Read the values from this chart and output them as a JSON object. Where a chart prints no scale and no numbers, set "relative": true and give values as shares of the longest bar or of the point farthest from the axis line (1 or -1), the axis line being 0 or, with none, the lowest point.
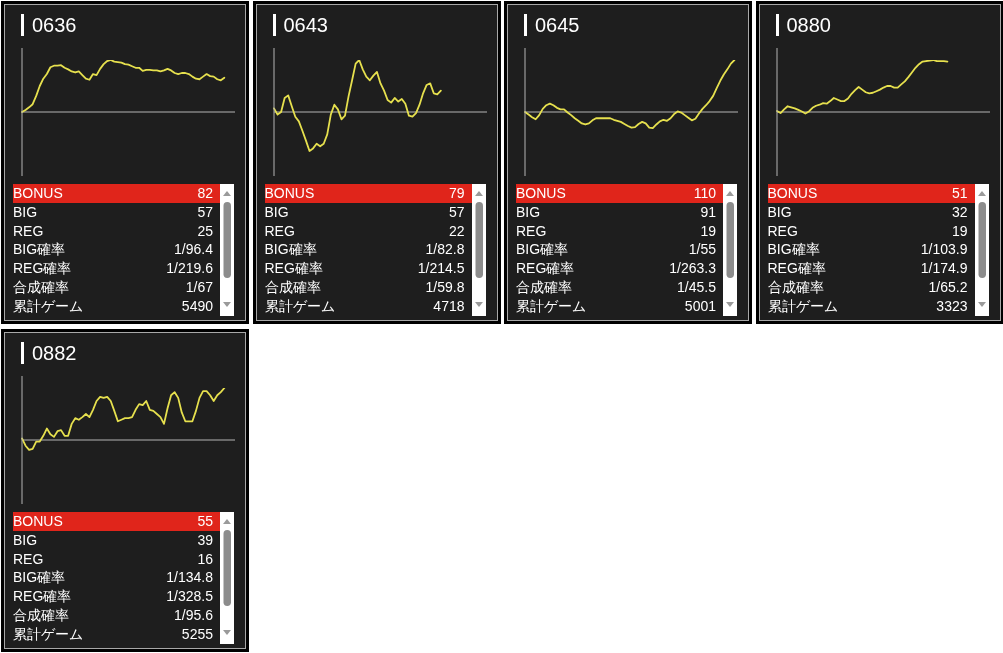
{
  "chart_data": [
    {
      "type": "line",
      "title": "0636",
      "tick_labels": false,
      "relative": true,
      "color": "#e6e04e",
      "categories": [
        null,
        null,
        null,
        null,
        null,
        null,
        null,
        null,
        null,
        null,
        null,
        null,
        null,
        null,
        null,
        null,
        null,
        null,
        null,
        null,
        null,
        null,
        null,
        null,
        null,
        null,
        null,
        null,
        null,
        null,
        null,
        null,
        null,
        null,
        null,
        null,
        null,
        null,
        null,
        null,
        null,
        null,
        null,
        null,
        null,
        null,
        null,
        null,
        null,
        null,
        null,
        null,
        null,
        null,
        null,
        null,
        null,
        null,
        null,
        null,
        null
      ],
      "values": [
        0,
        0.04,
        0.09,
        0.15,
        0.31,
        0.5,
        0.64,
        0.73,
        0.86,
        0.89,
        0.89,
        0.9,
        0.85,
        0.82,
        0.78,
        0.76,
        0.78,
        0.71,
        0.64,
        0.62,
        0.73,
        0.71,
        0.83,
        0.92,
        0.98,
        1,
        0.97,
        0.96,
        0.95,
        0.92,
        0.91,
        0.88,
        0.85,
        0.85,
        0.79,
        0.81,
        0.81,
        0.8,
        0.8,
        0.78,
        0.8,
        0.83,
        0.8,
        0.75,
        0.73,
        0.75,
        0.75,
        0.73,
        0.68,
        0.64,
        0.63,
        0.68,
        0.73,
        0.69,
        0.68,
        0.63,
        0.61,
        0.66,
        null,
        null,
        null
      ],
      "annotations": [
        "BONUS",
        "82",
        "BIG",
        "57",
        "REG",
        "25",
        "BIG確率",
        "1/96.4",
        "REG確率",
        "1/219.6",
        "合成確率",
        "1/67",
        "累計ゲーム",
        "5490"
      ]
    },
    {
      "type": "line",
      "title": "0643",
      "tick_labels": false,
      "relative": true,
      "color": "#e6e04e",
      "categories": [
        null,
        null,
        null,
        null,
        null,
        null,
        null,
        null,
        null,
        null,
        null,
        null,
        null,
        null,
        null,
        null,
        null,
        null,
        null,
        null,
        null,
        null,
        null,
        null,
        null,
        null,
        null,
        null,
        null,
        null,
        null,
        null,
        null,
        null,
        null,
        null,
        null,
        null,
        null,
        null,
        null,
        null,
        null,
        null,
        null,
        null,
        null,
        null,
        null,
        null,
        null,
        null,
        null,
        null,
        null,
        null,
        null,
        null,
        null,
        null,
        null
      ],
      "values": [
        0.07,
        -0.05,
        0,
        0.27,
        0.32,
        0.11,
        -0.09,
        -0.18,
        -0.36,
        -0.55,
        -0.75,
        -0.7,
        -0.61,
        -0.66,
        -0.61,
        -0.43,
        -0.05,
        0.14,
        0.05,
        -0.14,
        -0.07,
        0.3,
        0.61,
        0.93,
        1,
        0.82,
        0.68,
        0.61,
        0.7,
        0.77,
        0.55,
        0.41,
        0.23,
        0.18,
        0.27,
        0.2,
        0.25,
        0.16,
        -0.07,
        -0.09,
        -0.02,
        0.14,
        0.36,
        0.52,
        0.55,
        0.36,
        0.34,
        0.41,
        null,
        null,
        null,
        null,
        null,
        null,
        null,
        null,
        null,
        null,
        null,
        null,
        null
      ],
      "annotations": [
        "BONUS",
        "79",
        "BIG",
        "57",
        "REG",
        "22",
        "BIG確率",
        "1/82.8",
        "REG確率",
        "1/214.5",
        "合成確率",
        "1/59.8",
        "累計ゲーム",
        "4718"
      ]
    },
    {
      "type": "line",
      "title": "0645",
      "tick_labels": false,
      "relative": true,
      "color": "#e6e04e",
      "categories": [
        null,
        null,
        null,
        null,
        null,
        null,
        null,
        null,
        null,
        null,
        null,
        null,
        null,
        null,
        null,
        null,
        null,
        null,
        null,
        null,
        null,
        null,
        null,
        null,
        null,
        null,
        null,
        null,
        null,
        null,
        null,
        null,
        null,
        null,
        null,
        null,
        null,
        null,
        null,
        null,
        null,
        null,
        null,
        null,
        null,
        null,
        null,
        null,
        null,
        null,
        null,
        null,
        null,
        null,
        null,
        null,
        null,
        null,
        null,
        null,
        null
      ],
      "values": [
        0,
        -0.05,
        -0.1,
        -0.14,
        -0.06,
        0.06,
        0.13,
        0.16,
        0.13,
        0.08,
        0.05,
        0.05,
        -0.01,
        -0.06,
        -0.12,
        -0.17,
        -0.22,
        -0.24,
        -0.22,
        -0.16,
        -0.12,
        -0.12,
        -0.12,
        -0.12,
        -0.12,
        -0.15,
        -0.17,
        -0.19,
        -0.23,
        -0.27,
        -0.3,
        -0.29,
        -0.23,
        -0.19,
        -0.22,
        -0.3,
        -0.31,
        -0.24,
        -0.18,
        -0.15,
        -0.17,
        -0.12,
        -0.04,
        0.01,
        -0.01,
        -0.06,
        -0.11,
        -0.16,
        -0.13,
        -0.03,
        0.06,
        0.13,
        0.21,
        0.31,
        0.46,
        0.6,
        0.72,
        0.82,
        0.93,
        1,
        null
      ],
      "annotations": [
        "BONUS",
        "110",
        "BIG",
        "91",
        "REG",
        "19",
        "BIG確率",
        "1/55",
        "REG確率",
        "1/263.3",
        "合成確率",
        "1/45.5",
        "累計ゲーム",
        "5001"
      ]
    },
    {
      "type": "line",
      "title": "0880",
      "tick_labels": false,
      "relative": true,
      "color": "#e6e04e",
      "categories": [
        null,
        null,
        null,
        null,
        null,
        null,
        null,
        null,
        null,
        null,
        null,
        null,
        null,
        null,
        null,
        null,
        null,
        null,
        null,
        null,
        null,
        null,
        null,
        null,
        null,
        null,
        null,
        null,
        null,
        null,
        null,
        null,
        null,
        null,
        null,
        null,
        null,
        null,
        null,
        null,
        null,
        null,
        null,
        null,
        null,
        null,
        null,
        null,
        null,
        null,
        null,
        null,
        null,
        null,
        null,
        null,
        null,
        null,
        null,
        null,
        null
      ],
      "values": [
        0.02,
        -0.02,
        0.05,
        0.11,
        0.09,
        0.07,
        0.04,
        0.01,
        -0.03,
        0.01,
        0.08,
        0.12,
        0.14,
        0.17,
        0.16,
        0.21,
        0.27,
        0.24,
        0.21,
        0.21,
        0.26,
        0.35,
        0.42,
        0.48,
        0.43,
        0.38,
        0.36,
        0.37,
        0.4,
        0.43,
        0.47,
        0.5,
        0.5,
        0.47,
        0.47,
        0.53,
        0.59,
        0.67,
        0.76,
        0.85,
        0.92,
        0.97,
        0.98,
        0.99,
        1,
        0.98,
        0.98,
        0.98,
        0.97,
        null,
        null,
        null,
        null,
        null,
        null,
        null,
        null,
        null,
        null,
        null,
        null
      ],
      "annotations": [
        "BONUS",
        "51",
        "BIG",
        "32",
        "REG",
        "19",
        "BIG確率",
        "1/103.9",
        "REG確率",
        "1/174.9",
        "合成確率",
        "1/65.2",
        "累計ゲーム",
        "3323"
      ]
    },
    {
      "type": "line",
      "title": "0882",
      "tick_labels": false,
      "relative": true,
      "color": "#e6e04e",
      "categories": [
        null,
        null,
        null,
        null,
        null,
        null,
        null,
        null,
        null,
        null,
        null,
        null,
        null,
        null,
        null,
        null,
        null,
        null,
        null,
        null,
        null,
        null,
        null,
        null,
        null,
        null,
        null,
        null,
        null,
        null,
        null,
        null,
        null,
        null,
        null,
        null,
        null,
        null,
        null,
        null,
        null,
        null,
        null,
        null,
        null,
        null,
        null,
        null,
        null,
        null,
        null,
        null,
        null,
        null,
        null,
        null,
        null,
        null,
        null,
        null,
        null
      ],
      "values": [
        0.03,
        -0.11,
        -0.19,
        -0.17,
        -0.03,
        -0.03,
        0.08,
        0.22,
        0.11,
        0.06,
        0.17,
        0.19,
        0.08,
        0.08,
        0.31,
        0.42,
        0.39,
        0.44,
        0.5,
        0.44,
        0.58,
        0.75,
        0.83,
        0.81,
        0.83,
        0.75,
        0.56,
        0.36,
        0.39,
        0.42,
        0.42,
        0.44,
        0.58,
        0.69,
        0.67,
        0.75,
        0.58,
        0.56,
        0.5,
        0.44,
        0.31,
        0.61,
        0.86,
        0.92,
        0.81,
        0.53,
        0.36,
        0.36,
        0.36,
        0.56,
        0.81,
        0.94,
        0.94,
        0.86,
        0.75,
        0.86,
        0.92,
        1,
        null,
        null,
        null
      ],
      "annotations": [
        "BONUS",
        "55",
        "BIG",
        "39",
        "REG",
        "16",
        "BIG確率",
        "1/134.8",
        "REG確率",
        "1/328.5",
        "合成確率",
        "1/95.6",
        "累計ゲーム",
        "5255"
      ]
    }
  ]
}
